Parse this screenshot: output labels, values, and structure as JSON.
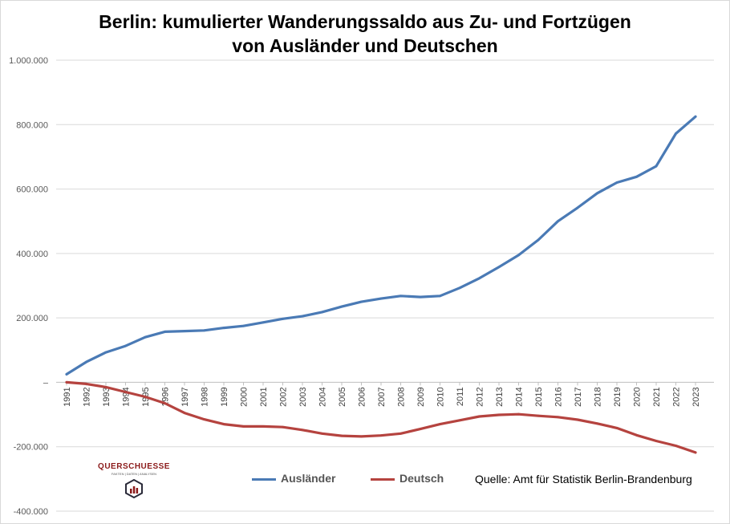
{
  "title_line1": "Berlin: kumulierter Wanderungssaldo aus Zu- und Fortzügen",
  "title_line2": "von Ausländer und Deutschen",
  "source": "Quelle: Amt für Statistik Berlin-Brandenburg",
  "logo": {
    "name": "QUERSCHUESSE",
    "tagline": "FAKTEN | DATEN | ANALYSEN"
  },
  "colors": {
    "auslaender": "#4a7ab5",
    "deutsch": "#b5433f",
    "grid": "#d9d9d9"
  },
  "chart_data": {
    "type": "line",
    "title": "Berlin: kumulierter Wanderungssaldo aus Zu- und Fortzügen von Ausländer und Deutschen",
    "xlabel": "",
    "ylabel": "",
    "ylim": [
      -400000,
      1000000
    ],
    "y_ticks": [
      1000000,
      800000,
      600000,
      400000,
      200000,
      0,
      -200000,
      -400000
    ],
    "y_tick_labels": [
      "1.000.000",
      "800.000",
      "600.000",
      "400.000",
      "200.000",
      "–",
      "-200.000",
      "-400.000"
    ],
    "grid": true,
    "legend_position": "bottom",
    "categories": [
      "1991",
      "1992",
      "1993",
      "1994",
      "1995",
      "1996",
      "1997",
      "1998",
      "1999",
      "2000",
      "2001",
      "2002",
      "2003",
      "2004",
      "2005",
      "2006",
      "2007",
      "2008",
      "2009",
      "2010",
      "2011",
      "2012",
      "2013",
      "2014",
      "2015",
      "2016",
      "2017",
      "2018",
      "2019",
      "2020",
      "2021",
      "2022",
      "2023"
    ],
    "series": [
      {
        "name": "Ausländer",
        "color": "#4a7ab5",
        "values": [
          25000,
          63000,
          93000,
          113000,
          140000,
          157000,
          159000,
          161000,
          169000,
          175000,
          186000,
          197000,
          205000,
          218000,
          235000,
          250000,
          260000,
          268000,
          265000,
          268000,
          293000,
          323000,
          358000,
          395000,
          442000,
          500000,
          542000,
          587000,
          620000,
          638000,
          671000,
          772000,
          825000
        ]
      },
      {
        "name": "Deutsch",
        "color": "#b5433f",
        "values": [
          0,
          -5000,
          -15000,
          -30000,
          -45000,
          -65000,
          -95000,
          -115000,
          -130000,
          -137000,
          -137000,
          -139000,
          -148000,
          -159000,
          -166000,
          -168000,
          -165000,
          -159000,
          -145000,
          -130000,
          -118000,
          -106000,
          -101000,
          -99000,
          -104000,
          -108000,
          -116000,
          -128000,
          -142000,
          -164000,
          -182000,
          -197000,
          -218000
        ]
      }
    ]
  }
}
